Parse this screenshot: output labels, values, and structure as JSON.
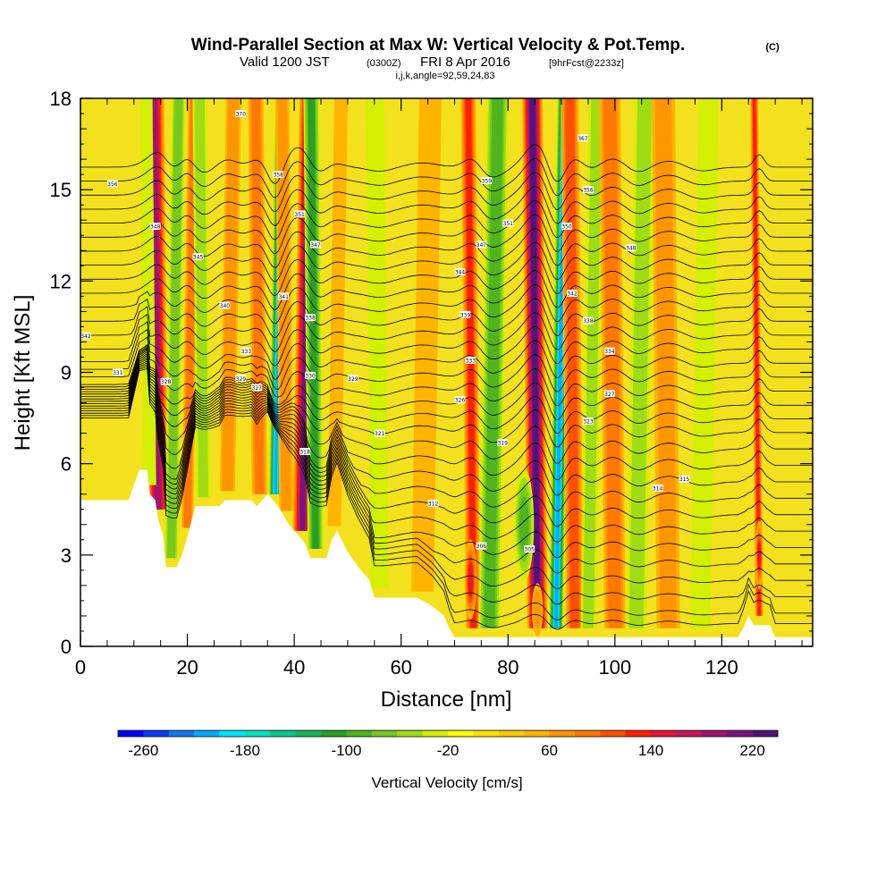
{
  "title": {
    "main": "Wind-Parallel Section at Max W: Vertical Velocity & Pot.Temp.",
    "copyright": "(C)",
    "valid_prefix": "Valid 1200 JST",
    "valid_utc": "(0300Z)",
    "valid_date": "FRI 8 Apr 2016",
    "forecast": "[9hrFcst@2233z]",
    "indices": "i,j,k,angle=92,59,24,83"
  },
  "colors": {
    "terrain": "#ffffff",
    "background_field": "#f2e11c",
    "contour": "#000000",
    "frame": "#000000"
  },
  "chart_data": {
    "type": "heatmap",
    "xlabel": "Distance [nm]",
    "ylabel": "Height [Kft MSL]",
    "xlim": [
      0,
      137
    ],
    "ylim": [
      0,
      18
    ],
    "x_ticks": [
      "0",
      "20",
      "40",
      "60",
      "80",
      "100",
      "120"
    ],
    "y_ticks": [
      "0",
      "3",
      "6",
      "9",
      "12",
      "15",
      "18"
    ],
    "x_tick_values": [
      0,
      20,
      40,
      60,
      80,
      100,
      120
    ],
    "y_tick_values": [
      0,
      3,
      6,
      9,
      12,
      15,
      18
    ],
    "colorbar": {
      "label": "Vertical Velocity [cm/s]",
      "range": [
        -280,
        240
      ],
      "step": 20,
      "tick_labels": [
        "-260",
        "-180",
        "-100",
        "-20",
        "60",
        "140",
        "220"
      ],
      "tick_values": [
        -260,
        -180,
        -100,
        -20,
        60,
        140,
        220
      ],
      "colors": [
        "#0000ff",
        "#0a3cf5",
        "#1478ee",
        "#00aaff",
        "#00e6ff",
        "#00e6be",
        "#0ac88c",
        "#14b45a",
        "#28a028",
        "#50b41e",
        "#78c81e",
        "#a0dc14",
        "#d2f000",
        "#ffff00",
        "#ffe100",
        "#ffc800",
        "#ffb400",
        "#ff9600",
        "#ff7800",
        "#ff5000",
        "#ff1e00",
        "#e6143c",
        "#c8145a",
        "#a0146e",
        "#781480",
        "#50147a"
      ]
    },
    "vertical_velocity_bands": [
      {
        "x": 14.5,
        "width": 2.0,
        "peak": 190
      },
      {
        "x": 17.0,
        "width": 1.4,
        "peak": -90
      },
      {
        "x": 13.0,
        "width": 1.4,
        "peak": -40
      },
      {
        "x": 20.0,
        "width": 1.2,
        "peak": 90
      },
      {
        "x": 23.0,
        "width": 1.5,
        "peak": -60
      },
      {
        "x": 27.5,
        "width": 1.6,
        "peak": 70
      },
      {
        "x": 33.5,
        "width": 1.6,
        "peak": 80
      },
      {
        "x": 36.5,
        "width": 1.3,
        "peak": -220
      },
      {
        "x": 38.5,
        "width": 1.5,
        "peak": 60
      },
      {
        "x": 41.5,
        "width": 1.9,
        "peak": 200
      },
      {
        "x": 44.0,
        "width": 1.6,
        "peak": -120
      },
      {
        "x": 47.5,
        "width": 1.5,
        "peak": 40
      },
      {
        "x": 56.0,
        "width": 2.0,
        "peak": -40
      },
      {
        "x": 64.0,
        "width": 2.5,
        "peak": 40
      },
      {
        "x": 73.5,
        "width": 1.5,
        "peak": 120
      },
      {
        "x": 76.5,
        "width": 2.2,
        "peak": -110
      },
      {
        "x": 85.5,
        "width": 2.0,
        "peak": 230
      },
      {
        "x": 89.0,
        "width": 1.4,
        "peak": -230
      },
      {
        "x": 92.5,
        "width": 1.8,
        "peak": 110
      },
      {
        "x": 95.0,
        "width": 1.6,
        "peak": -60
      },
      {
        "x": 100.0,
        "width": 2.2,
        "peak": 90
      },
      {
        "x": 104.0,
        "width": 2.0,
        "peak": -70
      },
      {
        "x": 110.0,
        "width": 2.5,
        "peak": 60
      },
      {
        "x": 116.0,
        "width": 2.2,
        "peak": -40
      },
      {
        "x": 127.0,
        "width": 0.8,
        "peak": 120
      }
    ],
    "low_level_features": [
      {
        "x": 73.0,
        "y": 2.2,
        "width": 1.2,
        "height": 1.4,
        "peak": 140
      },
      {
        "x": 83.0,
        "y": 4.0,
        "width": 2.0,
        "height": 2.0,
        "peak": -110
      },
      {
        "x": 85.5,
        "y": 1.2,
        "width": 1.2,
        "height": 1.0,
        "peak": 60
      },
      {
        "x": 127.0,
        "y": 3.0,
        "width": 0.8,
        "height": 1.2,
        "peak": 140
      }
    ],
    "terrain_profile": [
      [
        0,
        4.8
      ],
      [
        9,
        4.8
      ],
      [
        11,
        5.8
      ],
      [
        12.5,
        5.8
      ],
      [
        13,
        5.0
      ],
      [
        14,
        4.8
      ],
      [
        14.5,
        4.2
      ],
      [
        15.5,
        3.6
      ],
      [
        16,
        2.6
      ],
      [
        18,
        2.6
      ],
      [
        19,
        3.0
      ],
      [
        20,
        3.6
      ],
      [
        21.5,
        4.6
      ],
      [
        26,
        4.6
      ],
      [
        27,
        4.8
      ],
      [
        32,
        4.8
      ],
      [
        33,
        4.6
      ],
      [
        35,
        5.0
      ],
      [
        37,
        4.6
      ],
      [
        39,
        4.0
      ],
      [
        41,
        3.6
      ],
      [
        42,
        3.4
      ],
      [
        43,
        2.9
      ],
      [
        46,
        2.9
      ],
      [
        47,
        3.5
      ],
      [
        48,
        3.8
      ],
      [
        50,
        3.1
      ],
      [
        52,
        2.6
      ],
      [
        54,
        2.2
      ],
      [
        55,
        1.6
      ],
      [
        60,
        1.6
      ],
      [
        63,
        1.6
      ],
      [
        65,
        1.4
      ],
      [
        66,
        1.3
      ],
      [
        68,
        1.0
      ],
      [
        69,
        0.6
      ],
      [
        70,
        0.3
      ],
      [
        100,
        0.3
      ],
      [
        120,
        0.3
      ],
      [
        123,
        0.3
      ],
      [
        124,
        0.6
      ],
      [
        125,
        1.0
      ],
      [
        126,
        0.7
      ],
      [
        129,
        0.7
      ],
      [
        130,
        0.3
      ],
      [
        137,
        0.3
      ]
    ],
    "theta_contours": {
      "count": 32,
      "surface_spacing": 0.55,
      "top_spacing": 0.46
    },
    "contour_labels": [
      {
        "x": 6,
        "y": 15.2,
        "text": "356"
      },
      {
        "x": 1,
        "y": 10.2,
        "text": "342"
      },
      {
        "x": 7,
        "y": 9.0,
        "text": "331"
      },
      {
        "x": 14,
        "y": 13.8,
        "text": "348"
      },
      {
        "x": 16,
        "y": 8.7,
        "text": "328"
      },
      {
        "x": 22,
        "y": 12.8,
        "text": "345"
      },
      {
        "x": 27,
        "y": 11.2,
        "text": "340"
      },
      {
        "x": 31,
        "y": 9.7,
        "text": "333"
      },
      {
        "x": 30,
        "y": 8.8,
        "text": "329"
      },
      {
        "x": 33,
        "y": 8.5,
        "text": "327"
      },
      {
        "x": 30,
        "y": 17.5,
        "text": "370"
      },
      {
        "x": 37,
        "y": 15.5,
        "text": "358"
      },
      {
        "x": 38,
        "y": 11.5,
        "text": "341"
      },
      {
        "x": 41,
        "y": 14.2,
        "text": "351"
      },
      {
        "x": 44,
        "y": 13.2,
        "text": "347"
      },
      {
        "x": 43,
        "y": 10.8,
        "text": "338"
      },
      {
        "x": 43,
        "y": 8.9,
        "text": "330"
      },
      {
        "x": 42,
        "y": 6.4,
        "text": "318"
      },
      {
        "x": 51,
        "y": 8.8,
        "text": "329"
      },
      {
        "x": 56,
        "y": 7.0,
        "text": "321"
      },
      {
        "x": 66,
        "y": 4.7,
        "text": "312"
      },
      {
        "x": 71,
        "y": 12.3,
        "text": "344"
      },
      {
        "x": 72,
        "y": 10.9,
        "text": "339"
      },
      {
        "x": 73,
        "y": 9.4,
        "text": "333"
      },
      {
        "x": 71,
        "y": 8.1,
        "text": "326"
      },
      {
        "x": 76,
        "y": 15.3,
        "text": "359"
      },
      {
        "x": 75,
        "y": 13.2,
        "text": "347"
      },
      {
        "x": 80,
        "y": 13.9,
        "text": "351"
      },
      {
        "x": 79,
        "y": 6.7,
        "text": "319"
      },
      {
        "x": 75,
        "y": 3.3,
        "text": "306"
      },
      {
        "x": 84,
        "y": 3.2,
        "text": "305"
      },
      {
        "x": 94,
        "y": 16.7,
        "text": "367"
      },
      {
        "x": 95,
        "y": 15.0,
        "text": "356"
      },
      {
        "x": 91,
        "y": 13.8,
        "text": "350"
      },
      {
        "x": 92,
        "y": 11.6,
        "text": "342"
      },
      {
        "x": 95,
        "y": 10.7,
        "text": "338"
      },
      {
        "x": 99,
        "y": 9.7,
        "text": "334"
      },
      {
        "x": 99,
        "y": 8.3,
        "text": "327"
      },
      {
        "x": 103,
        "y": 13.1,
        "text": "348"
      },
      {
        "x": 95,
        "y": 7.4,
        "text": "323"
      },
      {
        "x": 108,
        "y": 5.2,
        "text": "314"
      },
      {
        "x": 113,
        "y": 5.5,
        "text": "315"
      }
    ]
  }
}
